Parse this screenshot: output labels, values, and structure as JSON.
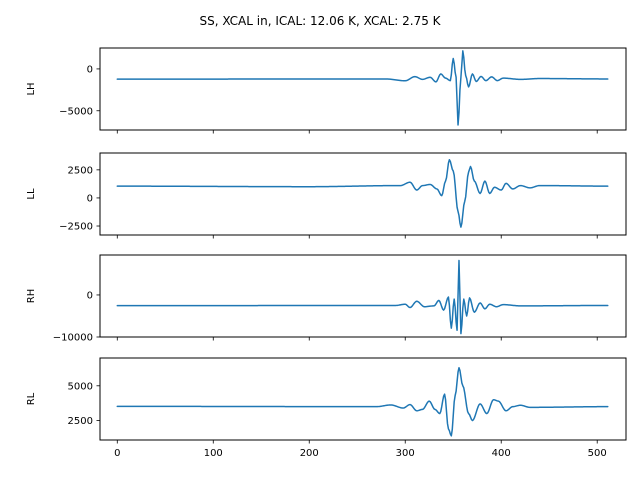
{
  "chart_data": {
    "type": "line",
    "title": "SS, XCAL in, ICAL: 12.06 K, XCAL: 2.75 K",
    "xlim": [
      -18,
      530
    ],
    "x_ticks": [
      0,
      100,
      200,
      300,
      400,
      500
    ],
    "x_tick_labels": [
      "0",
      "100",
      "200",
      "300",
      "400",
      "500"
    ],
    "grid": false,
    "line_color": "#1f77b4",
    "n_samples": 512,
    "panels": [
      {
        "ylabel": "LH",
        "ylim": [
          -7300,
          2500
        ],
        "y_ticks": [
          0,
          -5000
        ],
        "y_tick_labels": [
          "0",
          "−5000"
        ],
        "baseline": -1200,
        "feature_points": [
          [
            0,
            -1220
          ],
          [
            280,
            -1200
          ],
          [
            300,
            -1420
          ],
          [
            310,
            -920
          ],
          [
            318,
            -1250
          ],
          [
            326,
            -1000
          ],
          [
            332,
            -1550
          ],
          [
            337,
            -600
          ],
          [
            342,
            -1100
          ],
          [
            347,
            -1400
          ],
          [
            350,
            1250
          ],
          [
            353,
            -1000
          ],
          [
            355,
            -6700
          ],
          [
            358,
            -1000
          ],
          [
            360,
            2150
          ],
          [
            363,
            -800
          ],
          [
            366,
            -2150
          ],
          [
            370,
            -600
          ],
          [
            374,
            -1500
          ],
          [
            379,
            -900
          ],
          [
            384,
            -1400
          ],
          [
            390,
            -950
          ],
          [
            396,
            -1400
          ],
          [
            402,
            -1100
          ],
          [
            420,
            -1250
          ],
          [
            440,
            -1150
          ],
          [
            512,
            -1200
          ]
        ]
      },
      {
        "ylabel": "LL",
        "ylim": [
          -3300,
          4000
        ],
        "y_ticks": [
          2500,
          0,
          -2500
        ],
        "y_tick_labels": [
          "2500",
          "0",
          "−2500"
        ],
        "baseline": 1000,
        "feature_points": [
          [
            0,
            1050
          ],
          [
            200,
            1000
          ],
          [
            295,
            1100
          ],
          [
            305,
            1400
          ],
          [
            312,
            700
          ],
          [
            318,
            1100
          ],
          [
            326,
            1200
          ],
          [
            333,
            800
          ],
          [
            338,
            200
          ],
          [
            342,
            1500
          ],
          [
            346,
            3400
          ],
          [
            350,
            2400
          ],
          [
            355,
            -1200
          ],
          [
            358,
            -2600
          ],
          [
            362,
            -300
          ],
          [
            366,
            2300
          ],
          [
            368,
            2800
          ],
          [
            372,
            1500
          ],
          [
            378,
            400
          ],
          [
            383,
            1500
          ],
          [
            388,
            400
          ],
          [
            393,
            950
          ],
          [
            400,
            700
          ],
          [
            405,
            1300
          ],
          [
            412,
            800
          ],
          [
            420,
            1100
          ],
          [
            430,
            900
          ],
          [
            440,
            1100
          ],
          [
            512,
            1050
          ]
        ]
      },
      {
        "ylabel": "RH",
        "ylim": [
          -10000,
          9500
        ],
        "y_ticks": [
          0,
          -10000
        ],
        "y_tick_labels": [
          "0",
          "−10000"
        ],
        "baseline": -2500,
        "feature_points": [
          [
            0,
            -2550
          ],
          [
            290,
            -2500
          ],
          [
            300,
            -2200
          ],
          [
            305,
            -3000
          ],
          [
            312,
            -1500
          ],
          [
            320,
            -2800
          ],
          [
            330,
            -2600
          ],
          [
            335,
            -1300
          ],
          [
            340,
            -3600
          ],
          [
            345,
            -500
          ],
          [
            348,
            -7900
          ],
          [
            351,
            -1000
          ],
          [
            354,
            -8400
          ],
          [
            356,
            8200
          ],
          [
            358,
            -9200
          ],
          [
            361,
            -1000
          ],
          [
            364,
            -5000
          ],
          [
            367,
            -700
          ],
          [
            372,
            -4100
          ],
          [
            378,
            -1900
          ],
          [
            383,
            -3300
          ],
          [
            388,
            -2200
          ],
          [
            395,
            -2800
          ],
          [
            402,
            -2300
          ],
          [
            420,
            -2600
          ],
          [
            512,
            -2500
          ]
        ]
      },
      {
        "ylabel": "RL",
        "ylim": [
          1100,
          7000
        ],
        "y_ticks": [
          5000,
          2500
        ],
        "y_tick_labels": [
          "5000",
          "2500"
        ],
        "baseline": 3500,
        "feature_points": [
          [
            0,
            3520
          ],
          [
            270,
            3500
          ],
          [
            285,
            3620
          ],
          [
            298,
            3400
          ],
          [
            305,
            3650
          ],
          [
            312,
            3200
          ],
          [
            318,
            3300
          ],
          [
            325,
            3900
          ],
          [
            331,
            3300
          ],
          [
            336,
            3000
          ],
          [
            341,
            4400
          ],
          [
            345,
            1900
          ],
          [
            348,
            1400
          ],
          [
            352,
            4300
          ],
          [
            356,
            6300
          ],
          [
            360,
            5000
          ],
          [
            366,
            3000
          ],
          [
            370,
            2500
          ],
          [
            378,
            3700
          ],
          [
            385,
            3000
          ],
          [
            392,
            4000
          ],
          [
            397,
            3900
          ],
          [
            405,
            3200
          ],
          [
            412,
            3500
          ],
          [
            420,
            3600
          ],
          [
            430,
            3450
          ],
          [
            512,
            3500
          ]
        ]
      }
    ]
  }
}
